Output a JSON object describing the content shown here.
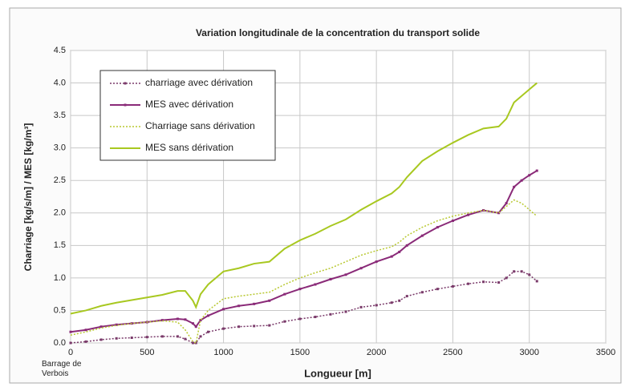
{
  "chart_data": {
    "type": "line",
    "title": "Variation longitudinale de la concentration du transport solide",
    "x_label": "Longueur [m]",
    "y_label": "Charriage [kg/s/m]  / MES [kg/m³]",
    "annotation": "Barrage de Verbois",
    "x": [
      0,
      100,
      200,
      300,
      400,
      500,
      600,
      700,
      750,
      800,
      820,
      850,
      900,
      1000,
      1100,
      1200,
      1300,
      1400,
      1500,
      1600,
      1700,
      1800,
      1900,
      2000,
      2100,
      2150,
      2200,
      2300,
      2400,
      2500,
      2600,
      2700,
      2800,
      2850,
      2900,
      2950,
      3000,
      3050
    ],
    "series": [
      {
        "name": "charriage avec dérivation",
        "color": "#7a3a6a",
        "style": "dotted",
        "markers": true,
        "values": [
          0.0,
          0.02,
          0.05,
          0.07,
          0.08,
          0.09,
          0.1,
          0.1,
          0.06,
          0.0,
          0.0,
          0.1,
          0.17,
          0.22,
          0.25,
          0.26,
          0.27,
          0.33,
          0.37,
          0.4,
          0.44,
          0.48,
          0.55,
          0.58,
          0.62,
          0.65,
          0.72,
          0.78,
          0.83,
          0.87,
          0.91,
          0.94,
          0.93,
          1.0,
          1.1,
          1.1,
          1.05,
          0.95
        ]
      },
      {
        "name": "MES avec dérivation",
        "color": "#8a2a78",
        "style": "solid",
        "markers": true,
        "values": [
          0.17,
          0.2,
          0.25,
          0.28,
          0.3,
          0.32,
          0.35,
          0.37,
          0.36,
          0.3,
          0.25,
          0.35,
          0.42,
          0.52,
          0.57,
          0.6,
          0.65,
          0.75,
          0.83,
          0.9,
          0.98,
          1.05,
          1.15,
          1.25,
          1.33,
          1.4,
          1.5,
          1.65,
          1.78,
          1.88,
          1.97,
          2.04,
          2.0,
          2.15,
          2.4,
          2.5,
          2.58,
          2.65
        ]
      },
      {
        "name": "Charriage sans dérivation",
        "color": "#b8c830",
        "style": "dotted",
        "markers": false,
        "values": [
          0.12,
          0.17,
          0.23,
          0.27,
          0.3,
          0.32,
          0.34,
          0.32,
          0.2,
          0.02,
          0.0,
          0.35,
          0.5,
          0.68,
          0.72,
          0.75,
          0.78,
          0.9,
          1.0,
          1.08,
          1.15,
          1.25,
          1.35,
          1.42,
          1.48,
          1.55,
          1.65,
          1.78,
          1.88,
          1.95,
          2.0,
          2.04,
          2.0,
          2.1,
          2.2,
          2.15,
          2.05,
          1.95
        ]
      },
      {
        "name": "MES sans dérivation",
        "color": "#a8c820",
        "style": "solid",
        "markers": false,
        "values": [
          0.45,
          0.5,
          0.57,
          0.62,
          0.66,
          0.7,
          0.74,
          0.8,
          0.8,
          0.65,
          0.55,
          0.75,
          0.9,
          1.1,
          1.15,
          1.22,
          1.25,
          1.45,
          1.58,
          1.68,
          1.8,
          1.9,
          2.05,
          2.18,
          2.3,
          2.4,
          2.55,
          2.8,
          2.95,
          3.08,
          3.2,
          3.3,
          3.33,
          3.45,
          3.7,
          3.8,
          3.9,
          4.0
        ]
      }
    ],
    "xlim": [
      0,
      3500
    ],
    "xticks": [
      0,
      500,
      1000,
      1500,
      2000,
      2500,
      3000,
      3500
    ],
    "ylim": [
      0,
      4.5
    ],
    "yticks": [
      {
        "value": 0,
        "label": "0.0"
      },
      0.5,
      {
        "value": 1,
        "label": "1.0"
      },
      1.5,
      {
        "value": 2,
        "label": "2.0"
      },
      2.5,
      {
        "value": 3,
        "label": "3.0"
      },
      3.5,
      {
        "value": 4,
        "label": "4.0"
      },
      4.5
    ],
    "grid": true,
    "legend": "upper left"
  }
}
